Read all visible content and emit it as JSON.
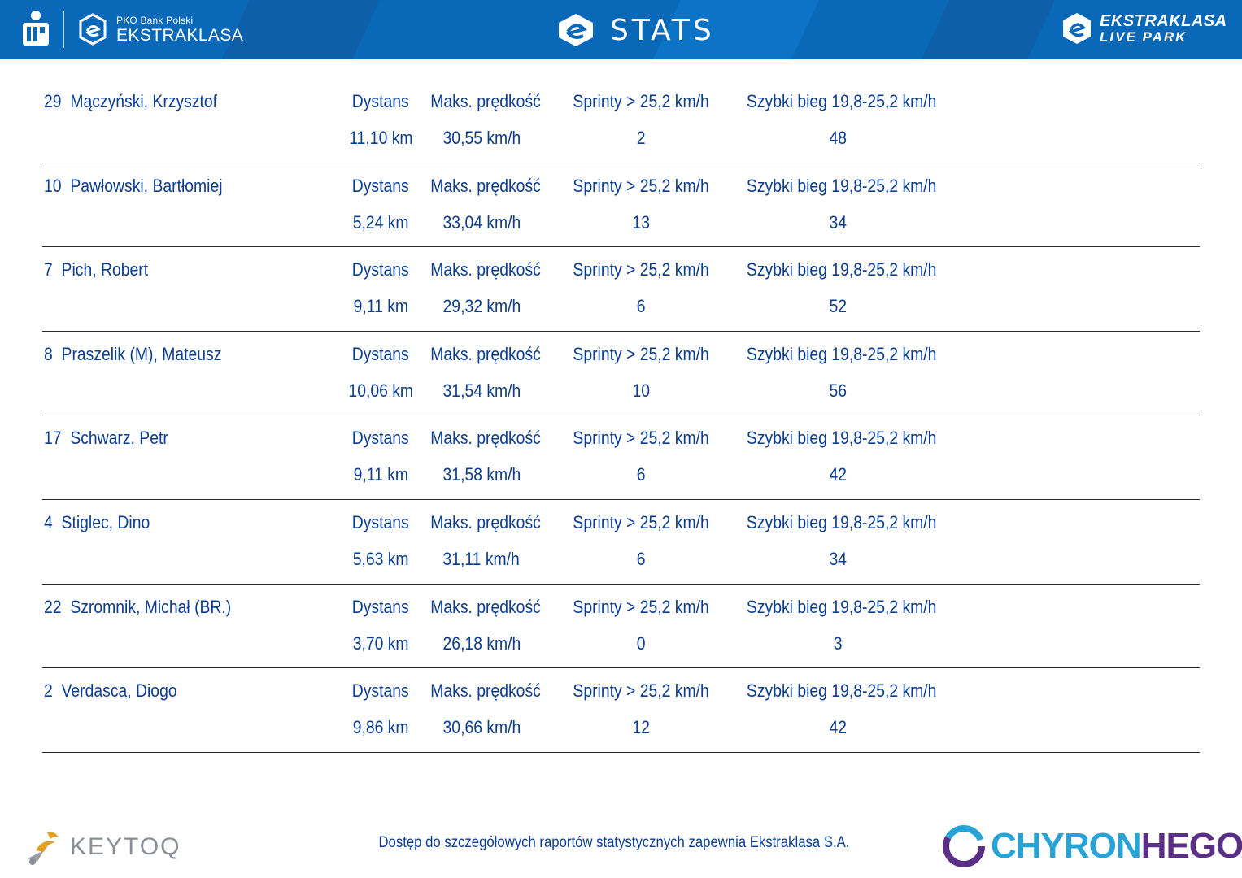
{
  "header": {
    "left_brand_small": "PKO Bank Polski",
    "left_brand_big": "EKSTRAKLASA",
    "title": "STATS",
    "right_brand_line1": "EKSTRAKLASA",
    "right_brand_line2": "LIVE PARK",
    "color_band": "#0a68b9"
  },
  "labels": {
    "distance": "Dystans",
    "max_speed": "Maks. prędkość",
    "sprints": "Sprinty > 25,2 km/h",
    "fast_run": "Szybki bieg 19,8-25,2 km/h"
  },
  "players": [
    {
      "number": "29",
      "name": "Mączyński, Krzysztof",
      "distance": "11,10 km",
      "max_speed": "30,55 km/h",
      "sprints": "2",
      "fast_run": "48"
    },
    {
      "number": "10",
      "name": "Pawłowski, Bartłomiej",
      "distance": "5,24 km",
      "max_speed": "33,04 km/h",
      "sprints": "13",
      "fast_run": "34"
    },
    {
      "number": "7",
      "name": "Pich, Robert",
      "distance": "9,11 km",
      "max_speed": "29,32 km/h",
      "sprints": "6",
      "fast_run": "52"
    },
    {
      "number": "8",
      "name": "Praszelik (M), Mateusz",
      "distance": "10,06 km",
      "max_speed": "31,54 km/h",
      "sprints": "10",
      "fast_run": "56"
    },
    {
      "number": "17",
      "name": "Schwarz, Petr",
      "distance": "9,11 km",
      "max_speed": "31,58 km/h",
      "sprints": "6",
      "fast_run": "42"
    },
    {
      "number": "4",
      "name": "Stiglec, Dino",
      "distance": "5,63 km",
      "max_speed": "31,11 km/h",
      "sprints": "6",
      "fast_run": "34"
    },
    {
      "number": "22",
      "name": "Szromnik, Michał (BR.)",
      "distance": "3,70 km",
      "max_speed": "26,18 km/h",
      "sprints": "0",
      "fast_run": "3"
    },
    {
      "number": "2",
      "name": "Verdasca, Diogo",
      "distance": "9,86 km",
      "max_speed": "30,66 km/h",
      "sprints": "12",
      "fast_run": "42"
    }
  ],
  "footer": {
    "left_logo": "KEYTOQ",
    "note": "Dostęp do szczegółowych raportów statystycznych zapewnia Ekstraklasa S.A.",
    "right_logo_part1": "CHYRON",
    "right_logo_part2": "HEGO"
  },
  "colors": {
    "text_blue": "#0c3d8e",
    "chyron_cyan": "#28a3d6",
    "chyron_purple": "#5b2f86"
  }
}
